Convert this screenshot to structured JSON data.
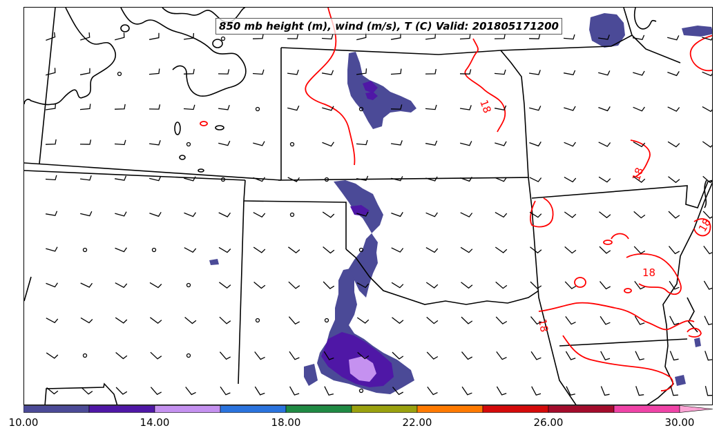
{
  "title": "850 mb height (m), wind (m/s), T (C) Valid: 201805171200",
  "colorbar": {
    "min": 10,
    "max": 32,
    "step": 2,
    "colors": [
      "#4b4a97",
      "#4f17a6",
      "#c591f0",
      "#2a73de",
      "#1f8a43",
      "#9aa10e",
      "#ff7a00",
      "#d40a0a",
      "#a30b2b",
      "#f043a7",
      "#fba3d4"
    ],
    "tick_labels": [
      "10.00",
      "14.00",
      "18.00",
      "22.00",
      "26.00",
      "30.00"
    ],
    "tick_values": [
      10,
      14,
      18,
      22,
      26,
      30
    ]
  },
  "isotherm_labels": [
    "18",
    "18",
    "18",
    "18",
    "18"
  ],
  "colors": {
    "isotherm": "#ff0000",
    "borders": "#000000",
    "barbs": "#000000"
  }
}
